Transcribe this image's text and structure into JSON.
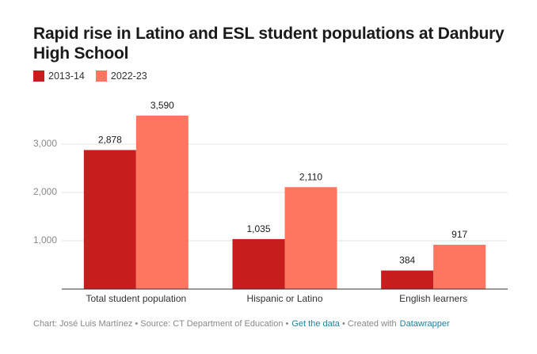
{
  "chart_data": {
    "type": "bar",
    "title": "Rapid rise in Latino and ESL student populations at Danbury High School",
    "categories": [
      "Total student population",
      "Hispanic or Latino",
      "English learners"
    ],
    "series": [
      {
        "name": "2013-14",
        "color": "#c71e1d",
        "values": [
          2878,
          1035,
          384
        ],
        "value_labels": [
          "2,878",
          "1,035",
          "384"
        ]
      },
      {
        "name": "2022-23",
        "color": "#fe7560",
        "values": [
          3590,
          2110,
          917
        ],
        "value_labels": [
          "3,590",
          "2,110",
          "917"
        ]
      }
    ],
    "ylim": [
      0,
      3600
    ],
    "yticks": [
      {
        "value": 1000,
        "label": "1,000"
      },
      {
        "value": 2000,
        "label": "2,000"
      },
      {
        "value": 3000,
        "label": "3,000"
      }
    ],
    "grid": true,
    "footer": [
      "Chart: José Luis Martínez • Source: CT Department of Education •",
      "Get the data",
      "• Created with",
      "Datawrapper"
    ]
  }
}
